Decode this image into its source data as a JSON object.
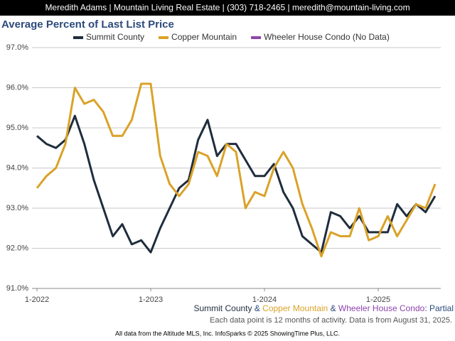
{
  "header": "Meredith Adams | Mountain Living Real Estate | (303) 718-2465 | meredith@mountain-living.com",
  "chart_data": {
    "type": "line",
    "title": "Average Percent of Last List Price",
    "categories": [
      "1-2022",
      null,
      null,
      null,
      null,
      null,
      null,
      null,
      null,
      null,
      null,
      null,
      "1-2023",
      null,
      null,
      null,
      null,
      null,
      null,
      null,
      null,
      null,
      null,
      null,
      "1-2024",
      null,
      null,
      null,
      null,
      null,
      null,
      null,
      null,
      null,
      null,
      null,
      "1-2025",
      null,
      null,
      null,
      null,
      null,
      null
    ],
    "series": [
      {
        "name": "Summit County",
        "color": "#1f2d3d",
        "values": [
          94.8,
          94.6,
          94.5,
          94.7,
          95.3,
          94.6,
          93.7,
          93.0,
          92.3,
          92.6,
          92.1,
          92.2,
          91.9,
          92.5,
          93.0,
          93.5,
          93.7,
          94.7,
          95.2,
          94.3,
          94.6,
          94.6,
          94.2,
          93.8,
          93.8,
          94.1,
          93.4,
          93.0,
          92.3,
          92.1,
          91.9,
          92.9,
          92.8,
          92.5,
          92.8,
          92.4,
          92.4,
          92.4,
          93.1,
          92.8,
          93.1,
          92.9,
          93.3
        ]
      },
      {
        "name": "Copper Mountain",
        "color": "#daa228",
        "values": [
          93.5,
          93.8,
          94.0,
          94.6,
          96.0,
          95.6,
          95.7,
          95.4,
          94.8,
          94.8,
          95.2,
          96.1,
          96.1,
          94.3,
          93.6,
          93.3,
          93.6,
          94.4,
          94.3,
          93.8,
          94.6,
          94.4,
          93.0,
          93.4,
          93.3,
          94.0,
          94.4,
          94.0,
          93.1,
          92.5,
          91.8,
          92.4,
          92.3,
          92.3,
          93.0,
          92.2,
          92.3,
          92.8,
          92.3,
          92.7,
          93.1,
          93.0,
          93.6
        ]
      },
      {
        "name": "Wheeler House Condo (No Data)",
        "color": "#8e44ad",
        "values": [
          null,
          null,
          null,
          null,
          null,
          null,
          null,
          null,
          null,
          null,
          null,
          null,
          null,
          null,
          null,
          null,
          null,
          null,
          null,
          null,
          null,
          null,
          null,
          null,
          null,
          null,
          null,
          null,
          null,
          null,
          null,
          null,
          null,
          null,
          null,
          null,
          null,
          null,
          null,
          null,
          null,
          null,
          null
        ]
      }
    ],
    "ylim": [
      91,
      97
    ],
    "yticks": [
      {
        "value": 91,
        "label": "91.0%"
      },
      {
        "value": 92,
        "label": "92.0%"
      },
      {
        "value": 93,
        "label": "93.0%"
      },
      {
        "value": 94,
        "label": "94.0%"
      },
      {
        "value": 95,
        "label": "95.0%"
      },
      {
        "value": 96,
        "label": "96.0%"
      },
      {
        "value": 97,
        "label": "97.0%"
      }
    ],
    "grid": true,
    "legend": "top",
    "caption_names": [
      "Summit County",
      "Copper Mountain",
      "Wheeler House Condo"
    ],
    "caption_joiner": " & ",
    "caption_suffix": ": Partial",
    "note": "Each data point is 12 months of activity. Data is from August 31, 2025.",
    "source": "All data from the Altitude MLS, Inc. InfoSparks © 2025 ShowingTime Plus, LLC."
  }
}
